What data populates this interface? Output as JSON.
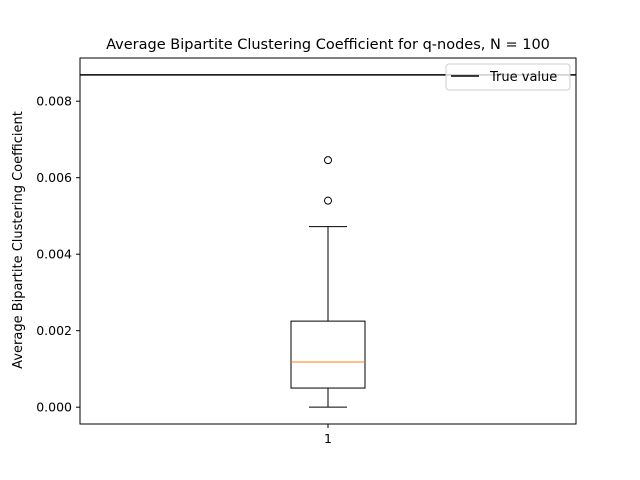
{
  "chart_data": {
    "type": "box",
    "title": "Average Bipartite Clustering Coefficient for q-nodes, N = 100",
    "xlabel": "",
    "ylabel": "Average Bipartite Clustering Coefficient",
    "categories": [
      "1"
    ],
    "ylim": [
      -0.00044,
      0.00913
    ],
    "yticks": [
      "0.000",
      "0.002",
      "0.004",
      "0.006",
      "0.008"
    ],
    "ytick_values": [
      0,
      0.002,
      0.004,
      0.006,
      0.008
    ],
    "xlim": [
      0.5,
      1.5
    ],
    "box": {
      "position": 1,
      "whisker_low": 0.0,
      "q1": 0.0005,
      "median": 0.00118,
      "q3": 0.00225,
      "whisker_high": 0.00472,
      "outliers": [
        0.0054,
        0.00646
      ]
    },
    "reference_line": {
      "name": "True value",
      "value": 0.00869
    },
    "legend": {
      "placement": "top-right",
      "entries": [
        "True value"
      ]
    },
    "grid": false,
    "colors": {
      "median": "#ff7f0e",
      "box": "#000000",
      "reference_line": "#000000"
    }
  }
}
